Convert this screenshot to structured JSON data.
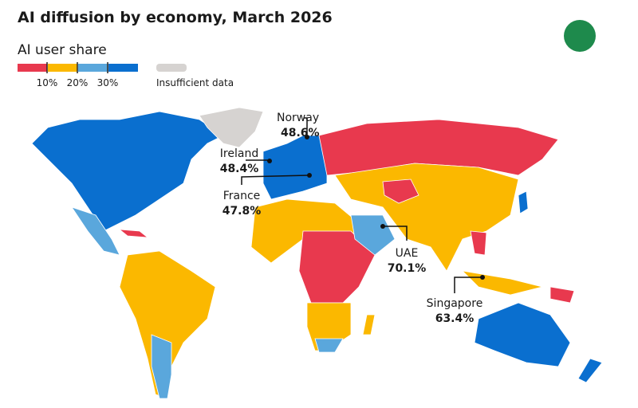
{
  "title": "AI diffusion by economy, March 2026",
  "legend": {
    "title": "AI user share",
    "colors": [
      "#e8394e",
      "#fbb800",
      "#5aa7dc",
      "#0a6fcf"
    ],
    "ticks": [
      "10%",
      "20%",
      "30%"
    ],
    "insufficient": {
      "label": "Insufficient data",
      "color": "#d6d3d1"
    }
  },
  "callouts": [
    {
      "name": "Norway",
      "value": "48.6%"
    },
    {
      "name": "Ireland",
      "value": "48.4%"
    },
    {
      "name": "France",
      "value": "47.8%"
    },
    {
      "name": "UAE",
      "value": "70.1%"
    },
    {
      "name": "Singapore",
      "value": "63.4%"
    }
  ]
}
